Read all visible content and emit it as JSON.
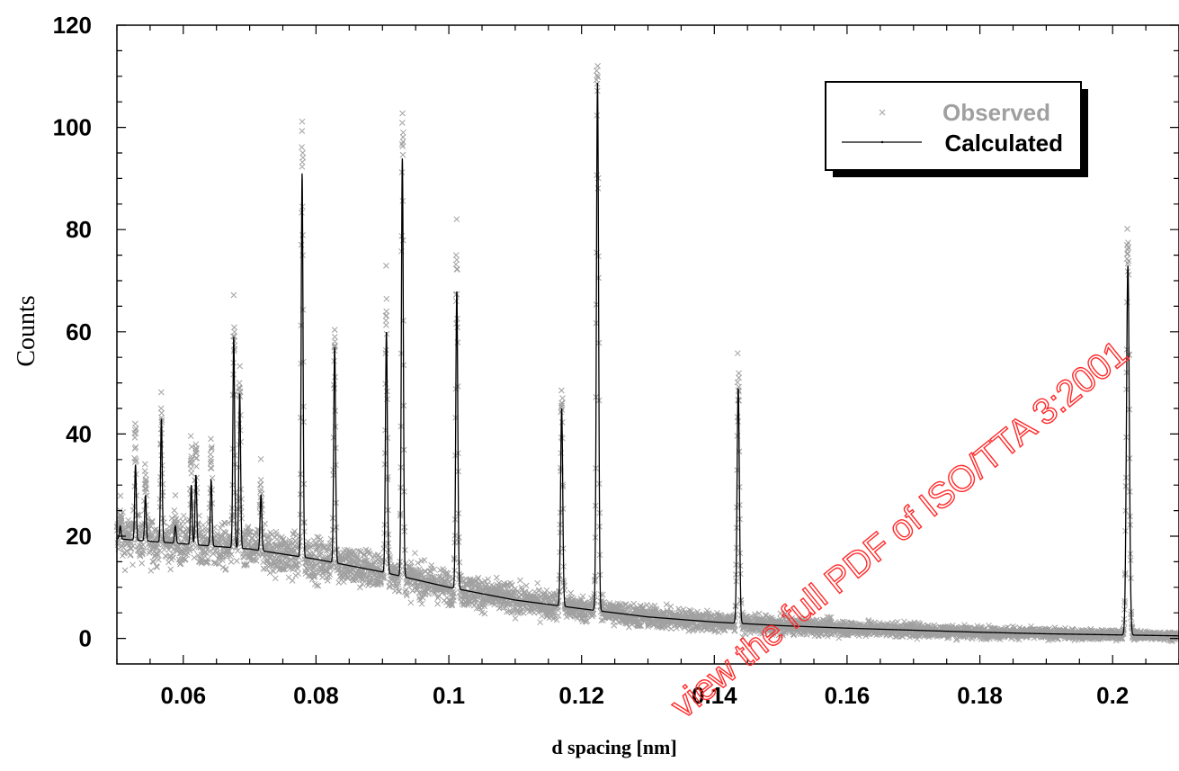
{
  "chart_data": {
    "type": "line",
    "title": "",
    "xlabel": "d spacing [nm]",
    "ylabel": "Counts",
    "xlim": [
      0.05,
      0.21
    ],
    "ylim": [
      -5,
      120
    ],
    "xticks": [
      0.06,
      0.08,
      0.1,
      0.12,
      0.14,
      0.16,
      0.18,
      0.2
    ],
    "xtick_labels": [
      "0.06",
      "0.08",
      "0.1",
      "0.12",
      "0.14",
      "0.16",
      "0.18",
      "0.2"
    ],
    "yticks": [
      0,
      20,
      40,
      60,
      80,
      100,
      120
    ],
    "ytick_labels": [
      "0",
      "20",
      "40",
      "60",
      "80",
      "100",
      "120"
    ],
    "grid": false,
    "legend_position": "top-right",
    "background": [
      [
        0.05,
        19.5
      ],
      [
        0.06,
        18.5
      ],
      [
        0.07,
        17.5
      ],
      [
        0.08,
        15.5
      ],
      [
        0.09,
        13
      ],
      [
        0.1,
        10
      ],
      [
        0.11,
        7.5
      ],
      [
        0.12,
        5.8
      ],
      [
        0.13,
        4.2
      ],
      [
        0.14,
        3.2
      ],
      [
        0.15,
        2.5
      ],
      [
        0.16,
        2
      ],
      [
        0.17,
        1.6
      ],
      [
        0.18,
        1.2
      ],
      [
        0.19,
        0.9
      ],
      [
        0.2,
        0.7
      ],
      [
        0.21,
        0.5
      ]
    ],
    "peaks": [
      {
        "d": 0.0505,
        "calc_height": 22,
        "obs_height": 25
      },
      {
        "d": 0.0528,
        "calc_height": 34,
        "obs_height": 42
      },
      {
        "d": 0.0543,
        "calc_height": 28,
        "obs_height": 32
      },
      {
        "d": 0.0567,
        "calc_height": 43,
        "obs_height": 45
      },
      {
        "d": 0.0588,
        "calc_height": 22,
        "obs_height": 24
      },
      {
        "d": 0.0612,
        "calc_height": 30,
        "obs_height": 35
      },
      {
        "d": 0.0619,
        "calc_height": 32,
        "obs_height": 38
      },
      {
        "d": 0.0642,
        "calc_height": 31,
        "obs_height": 36
      },
      {
        "d": 0.0676,
        "calc_height": 59,
        "obs_height": 60
      },
      {
        "d": 0.0685,
        "calc_height": 48,
        "obs_height": 50
      },
      {
        "d": 0.0717,
        "calc_height": 28,
        "obs_height": 31
      },
      {
        "d": 0.0779,
        "calc_height": 91,
        "obs_height": 95
      },
      {
        "d": 0.0828,
        "calc_height": 57,
        "obs_height": 59
      },
      {
        "d": 0.0906,
        "calc_height": 60,
        "obs_height": 64
      },
      {
        "d": 0.093,
        "calc_height": 94,
        "obs_height": 99
      },
      {
        "d": 0.1012,
        "calc_height": 68,
        "obs_height": 75
      },
      {
        "d": 0.117,
        "calc_height": 45,
        "obs_height": 47
      },
      {
        "d": 0.1224,
        "calc_height": 109,
        "obs_height": 112
      },
      {
        "d": 0.1436,
        "calc_height": 49,
        "obs_height": 51
      },
      {
        "d": 0.2023,
        "calc_height": 73,
        "obs_height": 77
      }
    ],
    "series": [
      {
        "name": "Observed",
        "style": "scatter",
        "marker": "x",
        "color": "#a0a0a0"
      },
      {
        "name": "Calculated",
        "style": "line",
        "color": "#000000"
      }
    ]
  },
  "watermark": {
    "text": "view the full PDF of ISO/TTA 3:2001",
    "color": "#ff2a2a"
  }
}
